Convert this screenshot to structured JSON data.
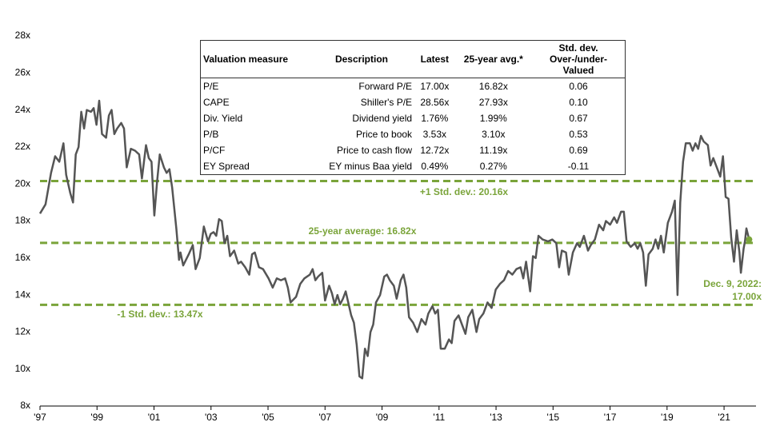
{
  "chart_data": {
    "type": "line",
    "color": "#555555",
    "ref_color": "#7aa43a",
    "xlim": [
      1997,
      2023
    ],
    "ylim": [
      8,
      28
    ],
    "xticks": [
      {
        "value": 1997,
        "label": "'97"
      },
      {
        "value": 1999.07,
        "label": "'99"
      },
      {
        "value": 2001.14,
        "label": "'01"
      },
      {
        "value": 2003.21,
        "label": "'03"
      },
      {
        "value": 2005.28,
        "label": "'05"
      },
      {
        "value": 2007.35,
        "label": "'07"
      },
      {
        "value": 2009.42,
        "label": "'09"
      },
      {
        "value": 2011.49,
        "label": "'11"
      },
      {
        "value": 2013.56,
        "label": "'13"
      },
      {
        "value": 2015.63,
        "label": "'15"
      },
      {
        "value": 2017.7,
        "label": "'17"
      },
      {
        "value": 2019.77,
        "label": "'19"
      },
      {
        "value": 2021.84,
        "label": "'21"
      }
    ],
    "yticks": [
      {
        "value": 8,
        "label": "8x"
      },
      {
        "value": 10,
        "label": "10x"
      },
      {
        "value": 12,
        "label": "12x"
      },
      {
        "value": 14,
        "label": "14x"
      },
      {
        "value": 16,
        "label": "16x"
      },
      {
        "value": 18,
        "label": "18x"
      },
      {
        "value": 20,
        "label": "20x"
      },
      {
        "value": 22,
        "label": "22x"
      },
      {
        "value": 24,
        "label": "24x"
      },
      {
        "value": 26,
        "label": "26x"
      },
      {
        "value": 28,
        "label": "28x"
      }
    ],
    "reference_lines": [
      {
        "value": 20.16,
        "label": "+1 Std. dev.: 20.16x"
      },
      {
        "value": 16.82,
        "label": "25-year average: 16.82x"
      },
      {
        "value": 13.47,
        "label": "-1 Std. dev.: 13.47x"
      }
    ],
    "annotation": [
      "Dec. 9, 2022:",
      "17.00x"
    ],
    "x": [
      1997.0,
      1997.2,
      1997.4,
      1997.55,
      1997.7,
      1997.85,
      1997.95,
      1998.1,
      1998.2,
      1998.3,
      1998.4,
      1998.5,
      1998.6,
      1998.7,
      1998.85,
      1998.95,
      1999.05,
      1999.15,
      1999.25,
      1999.4,
      1999.5,
      1999.6,
      1999.7,
      1999.8,
      1999.95,
      2000.05,
      2000.15,
      2000.3,
      2000.45,
      2000.6,
      2000.7,
      2000.85,
      2000.95,
      2001.05,
      2001.15,
      2001.25,
      2001.35,
      2001.5,
      2001.6,
      2001.7,
      2001.8,
      2001.95,
      2002.05,
      2002.1,
      2002.2,
      2002.4,
      2002.55,
      2002.65,
      2002.8,
      2002.95,
      2003.1,
      2003.2,
      2003.3,
      2003.4,
      2003.5,
      2003.6,
      2003.7,
      2003.8,
      2003.9,
      2004.05,
      2004.2,
      2004.3,
      2004.45,
      2004.6,
      2004.7,
      2004.8,
      2004.95,
      2005.1,
      2005.3,
      2005.45,
      2005.6,
      2005.75,
      2005.9,
      2006.0,
      2006.1,
      2006.3,
      2006.45,
      2006.6,
      2006.8,
      2006.9,
      2007.0,
      2007.1,
      2007.25,
      2007.35,
      2007.5,
      2007.6,
      2007.7,
      2007.8,
      2007.9,
      2008.0,
      2008.1,
      2008.3,
      2008.4,
      2008.5,
      2008.6,
      2008.7,
      2008.8,
      2008.9,
      2009.0,
      2009.1,
      2009.2,
      2009.35,
      2009.5,
      2009.6,
      2009.7,
      2009.85,
      2009.95,
      2010.1,
      2010.2,
      2010.3,
      2010.4,
      2010.55,
      2010.7,
      2010.85,
      2011.0,
      2011.1,
      2011.25,
      2011.35,
      2011.45,
      2011.55,
      2011.7,
      2011.85,
      2011.95,
      2012.05,
      2012.2,
      2012.35,
      2012.45,
      2012.55,
      2012.7,
      2012.85,
      2012.95,
      2013.1,
      2013.25,
      2013.4,
      2013.55,
      2013.7,
      2013.85,
      2014.0,
      2014.15,
      2014.3,
      2014.45,
      2014.55,
      2014.65,
      2014.8,
      2014.9,
      2015.0,
      2015.1,
      2015.25,
      2015.45,
      2015.6,
      2015.75,
      2015.85,
      2015.95,
      2016.1,
      2016.2,
      2016.35,
      2016.5,
      2016.6,
      2016.75,
      2016.9,
      2017.0,
      2017.15,
      2017.3,
      2017.45,
      2017.55,
      2017.7,
      2017.85,
      2017.95,
      2018.1,
      2018.2,
      2018.3,
      2018.45,
      2018.6,
      2018.7,
      2018.8,
      2018.9,
      2019.0,
      2019.1,
      2019.25,
      2019.35,
      2019.45,
      2019.55,
      2019.65,
      2019.8,
      2019.95,
      2020.05,
      2020.15,
      2020.25,
      2020.35,
      2020.45,
      2020.6,
      2020.7,
      2020.8,
      2020.9,
      2021.0,
      2021.1,
      2021.25,
      2021.35,
      2021.45,
      2021.55,
      2021.7,
      2021.8,
      2021.9,
      2022.0,
      2022.1,
      2022.2,
      2022.3,
      2022.4,
      2022.45,
      2022.55,
      2022.6,
      2022.65,
      2022.75
    ],
    "values": [
      18.4,
      18.9,
      20.6,
      21.5,
      21.2,
      22.2,
      20.5,
      19.5,
      19.0,
      21.6,
      22.0,
      23.9,
      23.0,
      24.0,
      23.9,
      24.1,
      23.2,
      24.5,
      22.7,
      22.5,
      23.7,
      24.0,
      22.7,
      23.0,
      23.3,
      23.0,
      20.9,
      21.9,
      21.8,
      21.6,
      20.3,
      22.1,
      21.4,
      21.2,
      18.3,
      20.1,
      21.6,
      20.9,
      20.6,
      20.8,
      19.8,
      17.6,
      15.9,
      16.3,
      15.6,
      16.2,
      16.7,
      15.4,
      16.0,
      17.7,
      16.9,
      17.3,
      17.4,
      17.2,
      18.1,
      18.0,
      16.8,
      17.2,
      16.1,
      16.4,
      15.7,
      15.8,
      15.5,
      15.1,
      16.2,
      16.3,
      15.5,
      15.4,
      14.9,
      14.4,
      14.9,
      14.8,
      14.9,
      14.4,
      13.6,
      13.9,
      14.6,
      14.9,
      15.1,
      15.4,
      14.8,
      15.0,
      15.2,
      13.7,
      14.5,
      14.1,
      13.5,
      14.0,
      13.5,
      13.8,
      14.2,
      12.9,
      12.5,
      11.3,
      9.6,
      9.5,
      11.1,
      10.7,
      12.0,
      12.4,
      13.6,
      14.0,
      15.0,
      15.1,
      14.8,
      14.5,
      13.8,
      14.8,
      15.1,
      14.4,
      12.8,
      12.5,
      12.0,
      12.7,
      12.4,
      13.0,
      13.4,
      13.0,
      13.2,
      11.1,
      11.1,
      11.6,
      11.4,
      12.6,
      12.9,
      12.3,
      11.9,
      12.8,
      13.2,
      12.0,
      12.7,
      13.0,
      13.6,
      13.3,
      14.3,
      14.6,
      14.8,
      15.3,
      15.1,
      15.4,
      15.5,
      14.9,
      15.8,
      14.2,
      16.1,
      16.0,
      17.2,
      17.0,
      16.9,
      17.0,
      16.8,
      15.5,
      16.4,
      16.3,
      15.1,
      16.3,
      16.8,
      16.6,
      17.2,
      16.4,
      16.7,
      17.0,
      17.8,
      17.5,
      18.0,
      17.8,
      18.2,
      17.9,
      18.5,
      18.5,
      16.9,
      16.6,
      16.8,
      16.5,
      16.8,
      16.3,
      14.5,
      16.2,
      16.5,
      17.0,
      16.5,
      17.2,
      16.3,
      17.9,
      18.5,
      19.1,
      14.0,
      19.0,
      21.2,
      22.2,
      22.2,
      21.8,
      22.2,
      21.9,
      22.6,
      22.3,
      22.1,
      21.0,
      21.4,
      21.0,
      20.4,
      21.5,
      19.3,
      19.2,
      17.1,
      15.8,
      17.5,
      16.3,
      15.2,
      16.5,
      16.9,
      17.6,
      17.0
    ],
    "table": {
      "headers": [
        "Valuation measure",
        "Description",
        "Latest",
        "25-year avg.*",
        "Std. dev. Over-/under-Valued"
      ],
      "rows": [
        [
          "P/E",
          "Forward P/E",
          "17.00x",
          "16.82x",
          "0.06"
        ],
        [
          "CAPE",
          "Shiller's P/E",
          "28.56x",
          "27.93x",
          "0.10"
        ],
        [
          "Div. Yield",
          "Dividend yield",
          "1.76%",
          "1.99%",
          "0.67"
        ],
        [
          "P/B",
          "Price to book",
          "3.53x",
          "3.10x",
          "0.53"
        ],
        [
          "P/CF",
          "Price to cash flow",
          "12.72x",
          "11.19x",
          "0.69"
        ],
        [
          "EY Spread",
          "EY minus Baa yield",
          "0.49%",
          "0.27%",
          "-0.11"
        ]
      ]
    }
  }
}
